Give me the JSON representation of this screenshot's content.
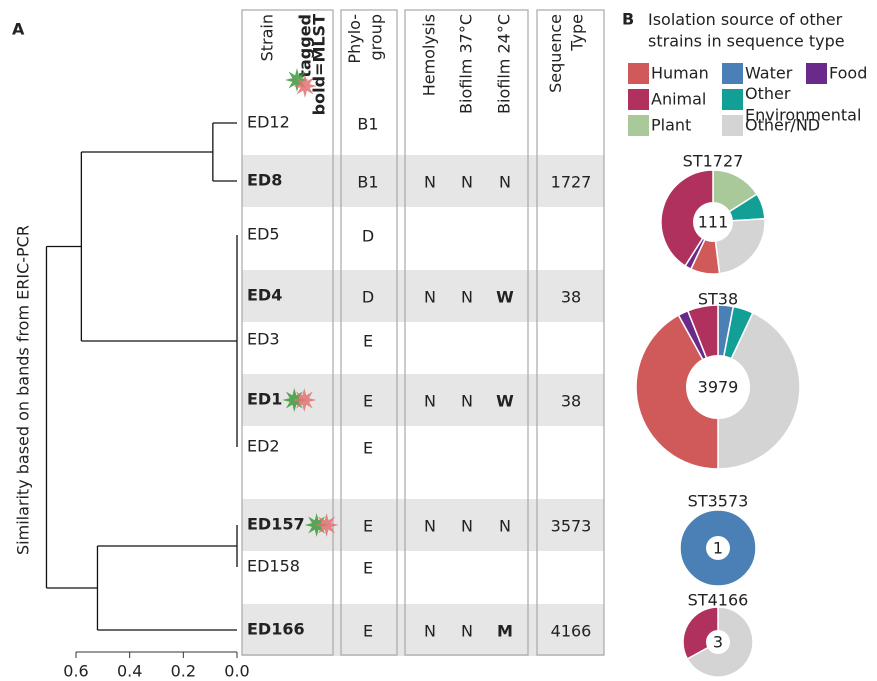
{
  "panel_a": {
    "label": "A",
    "y_axis_label": "Similarity based on bands from ERIC-PCR",
    "xlim": [
      0.6,
      0
    ],
    "xticks": [
      0.6,
      0.4,
      0.2,
      {
        "value": 0,
        "label": "0.0"
      }
    ],
    "merges": [
      {
        "children": [
          {
            "leaf": 0
          },
          {
            "leaf": 1
          }
        ],
        "height": 0.09
      },
      {
        "children": [
          {
            "leaf": 2
          },
          {
            "leaf": 3
          },
          {
            "leaf": 4
          },
          {
            "leaf": 5
          },
          {
            "leaf": 6
          }
        ],
        "height": 0
      },
      {
        "children": [
          {
            "leaf": 7
          },
          {
            "leaf": 8
          }
        ],
        "height": 0
      },
      {
        "children": [
          {
            "node": 0
          },
          {
            "node": 1
          }
        ],
        "height": 0.58
      },
      {
        "children": [
          {
            "node": 2
          },
          {
            "leaf": 9
          }
        ],
        "height": 0.52
      },
      {
        "children": [
          {
            "node": 3
          },
          {
            "node": 4
          }
        ],
        "height": 0.71
      }
    ],
    "headers": {
      "strain": "Strain",
      "tagged": "tagged",
      "mlst": "bold=MLST",
      "phylogroup": "Phylo-\ngroup",
      "hemolysis": "Hemolysis",
      "biofilm_37": "Biofilm 37°C",
      "biofilm_24": "Biofilm 24°C",
      "sequence_type": "Sequence\nType"
    },
    "rows": [
      {
        "strain": "ED12",
        "mlst": false,
        "tagged": false,
        "phylogroup": "B1",
        "hemolysis": null,
        "biofilm_37": null,
        "biofilm_24": null,
        "biofilm_24_bold": false,
        "sequence_type": null
      },
      {
        "strain": "ED8",
        "mlst": true,
        "tagged": false,
        "phylogroup": "B1",
        "hemolysis": "N",
        "biofilm_37": "N",
        "biofilm_24": "N",
        "biofilm_24_bold": false,
        "sequence_type": "1727"
      },
      {
        "strain": "ED5",
        "mlst": false,
        "tagged": false,
        "phylogroup": "D",
        "hemolysis": null,
        "biofilm_37": null,
        "biofilm_24": null,
        "biofilm_24_bold": false,
        "sequence_type": null
      },
      {
        "strain": "ED4",
        "mlst": true,
        "tagged": false,
        "phylogroup": "D",
        "hemolysis": "N",
        "biofilm_37": "N",
        "biofilm_24": "W",
        "biofilm_24_bold": true,
        "sequence_type": "38"
      },
      {
        "strain": "ED3",
        "mlst": false,
        "tagged": false,
        "phylogroup": "E",
        "hemolysis": null,
        "biofilm_37": null,
        "biofilm_24": null,
        "biofilm_24_bold": false,
        "sequence_type": null
      },
      {
        "strain": "ED1",
        "mlst": true,
        "tagged": true,
        "phylogroup": "E",
        "hemolysis": "N",
        "biofilm_37": "N",
        "biofilm_24": "W",
        "biofilm_24_bold": true,
        "sequence_type": "38"
      },
      {
        "strain": "ED2",
        "mlst": false,
        "tagged": false,
        "phylogroup": "E",
        "hemolysis": null,
        "biofilm_37": null,
        "biofilm_24": null,
        "biofilm_24_bold": false,
        "sequence_type": null
      },
      {
        "strain": "ED157",
        "mlst": true,
        "tagged": true,
        "phylogroup": "E",
        "hemolysis": "N",
        "biofilm_37": "N",
        "biofilm_24": "N",
        "biofilm_24_bold": false,
        "sequence_type": "3573"
      },
      {
        "strain": "ED158",
        "mlst": false,
        "tagged": false,
        "phylogroup": "E",
        "hemolysis": null,
        "biofilm_37": null,
        "biofilm_24": null,
        "biofilm_24_bold": false,
        "sequence_type": null
      },
      {
        "strain": "ED166",
        "mlst": true,
        "tagged": false,
        "phylogroup": "E",
        "hemolysis": "N",
        "biofilm_37": "N",
        "biofilm_24": "M",
        "biofilm_24_bold": true,
        "sequence_type": "4166"
      }
    ],
    "tag_colors": [
      "#3a9a3a",
      "#e07272"
    ],
    "highlight_color": "#e6e6e6"
  },
  "panel_b": {
    "label": "B",
    "title": "Isolation source of other\nstrains in sequence type",
    "sources": [
      {
        "name": "Human",
        "color": "#d05a5a"
      },
      {
        "name": "Animal",
        "color": "#b0305e"
      },
      {
        "name": "Plant",
        "color": "#a9c99b"
      },
      {
        "name": "Water",
        "color": "#4a80b6"
      },
      {
        "name": "Other\nEnvironmental",
        "color": "#12a096"
      },
      {
        "name": "Other/ND",
        "color": "#d4d4d4"
      },
      {
        "name": "Food",
        "color": "#6a2a8a"
      }
    ],
    "donuts": [
      {
        "title": "ST1727",
        "total": 111,
        "values": [
          9,
          41,
          16,
          null,
          8,
          24,
          2
        ]
      },
      {
        "title": "ST38",
        "total": 3979,
        "values": [
          42,
          6,
          null,
          3,
          4,
          43,
          2
        ]
      },
      {
        "title": "ST3573",
        "total": 1,
        "values": [
          null,
          null,
          null,
          100,
          null,
          null,
          null
        ]
      },
      {
        "title": "ST4166",
        "total": 3,
        "values": [
          null,
          33,
          null,
          null,
          null,
          67,
          null
        ]
      }
    ]
  }
}
